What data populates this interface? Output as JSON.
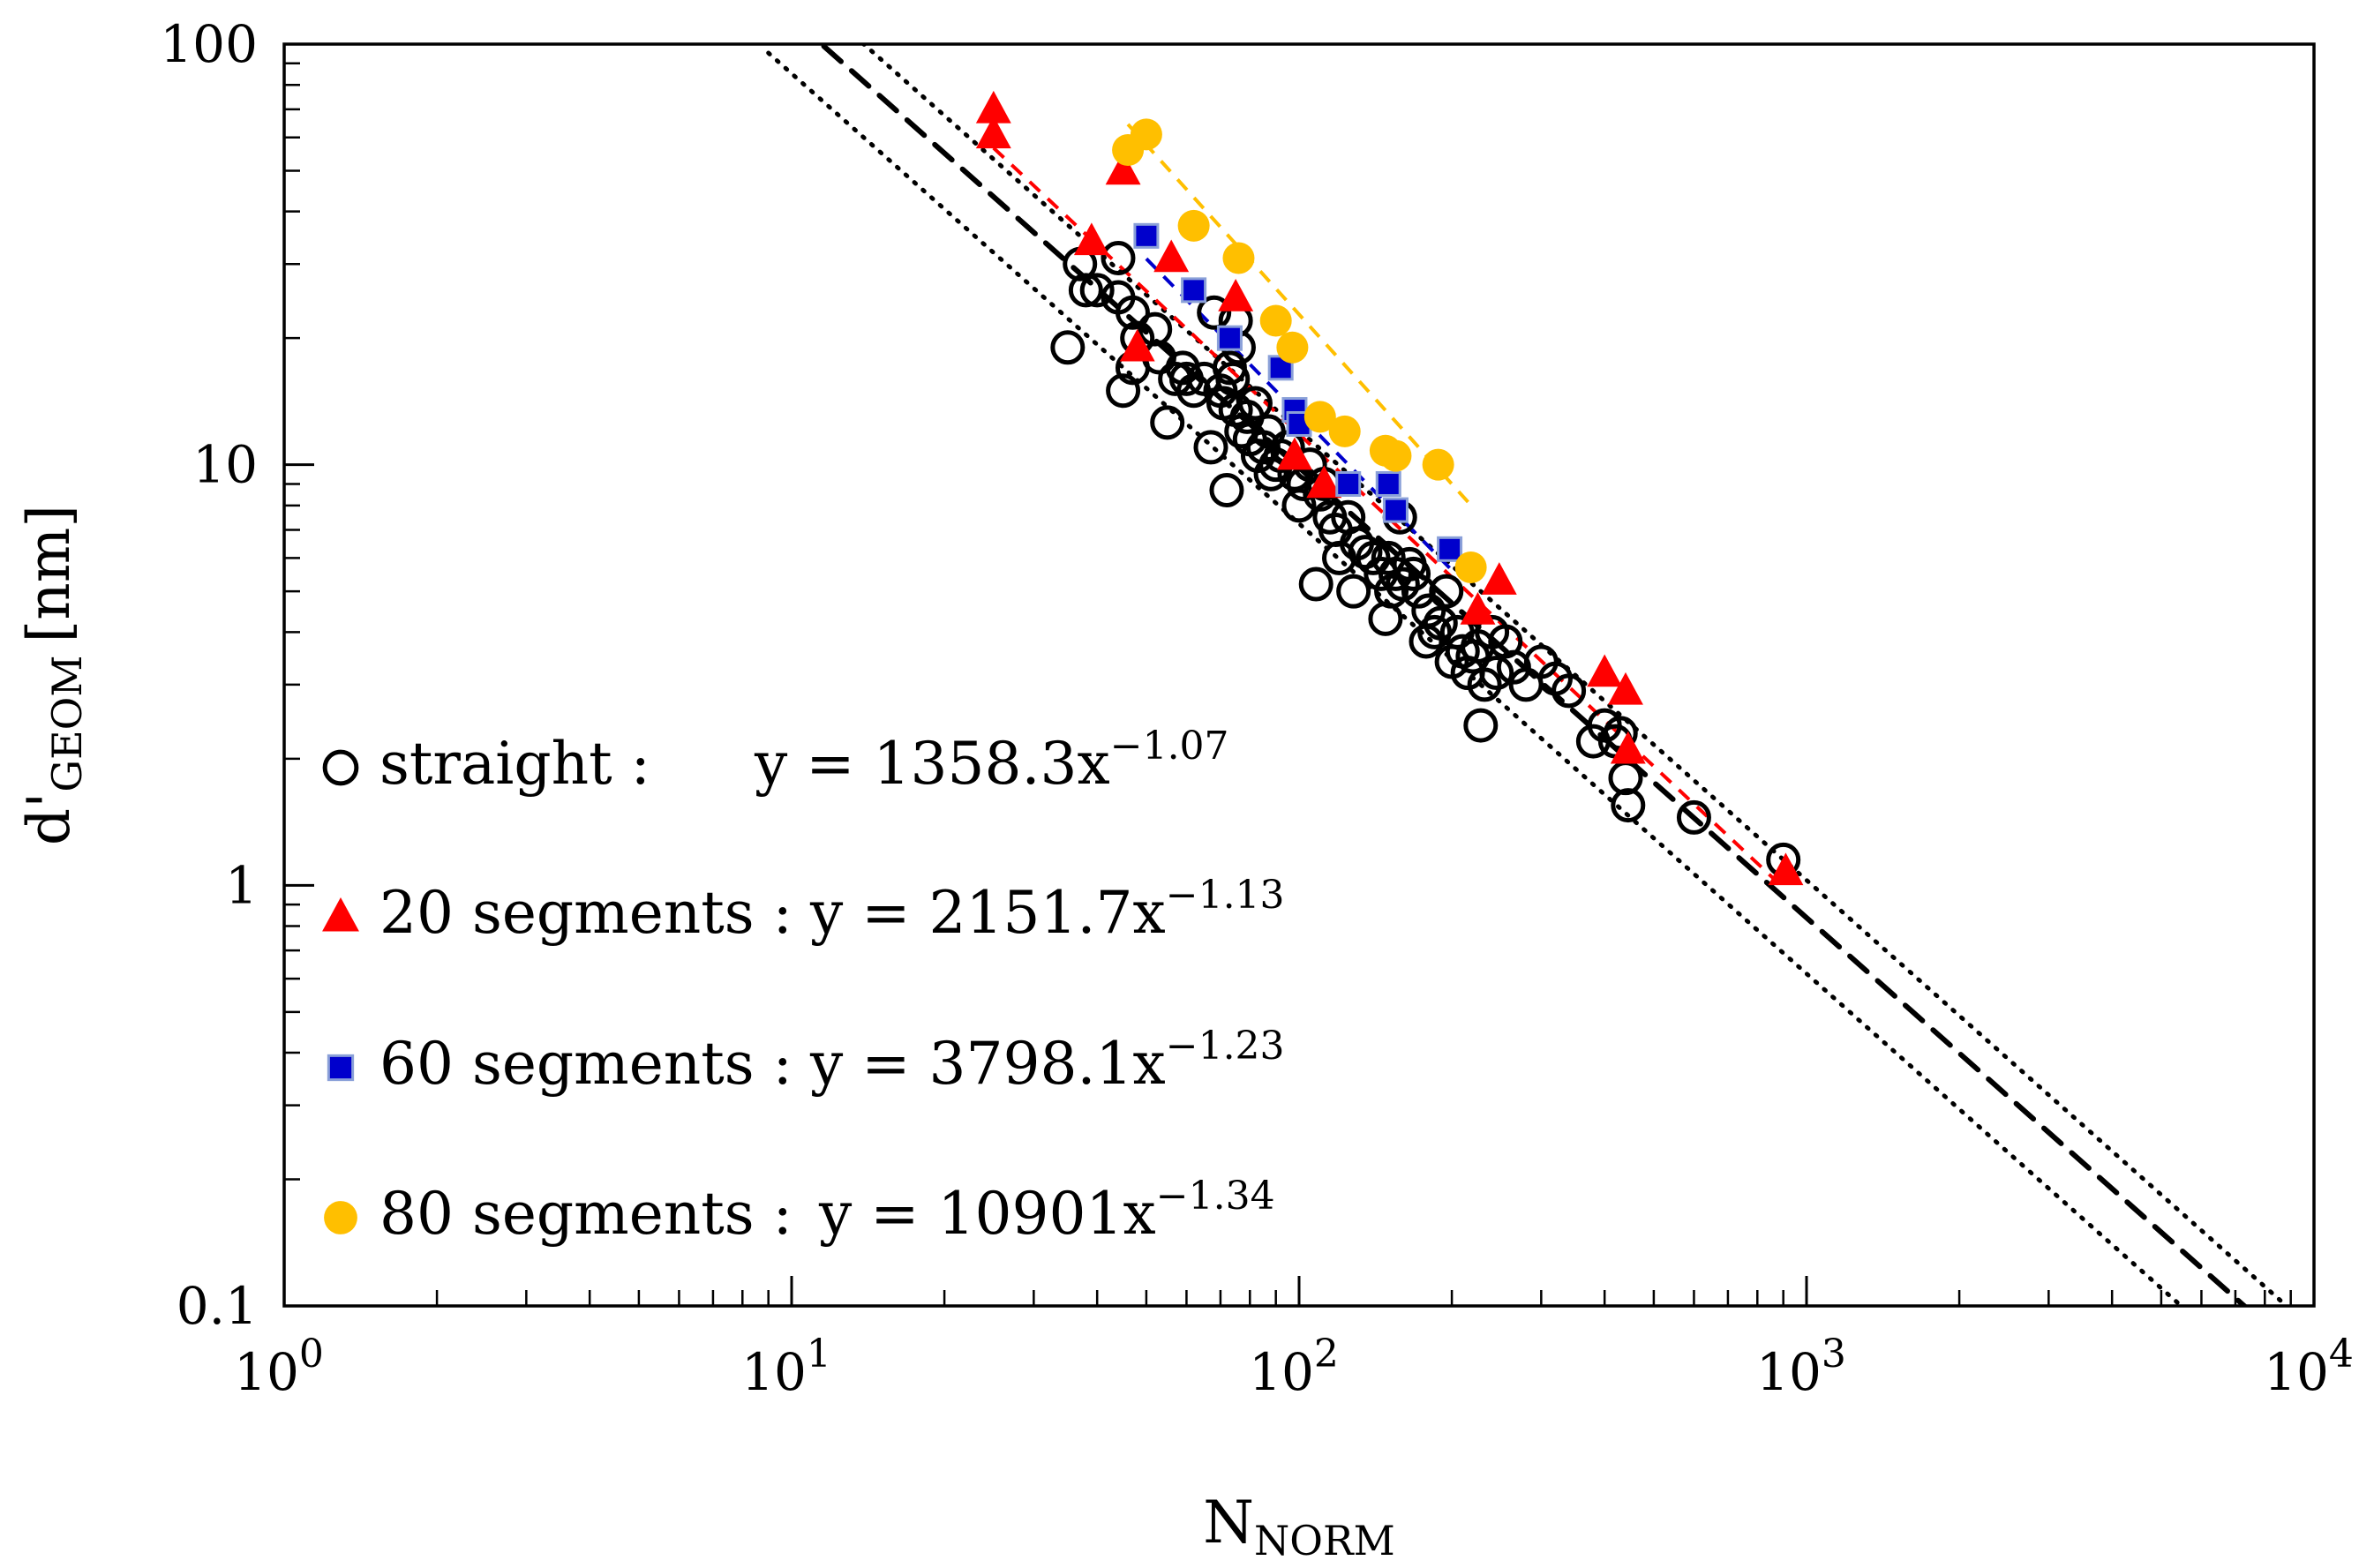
{
  "chart_data": {
    "type": "scatter",
    "xlabel": "N",
    "xlabel_sub": "NORM",
    "ylabel": "d'",
    "ylabel_sub": "GEOM",
    "ylabel_unit": "[nm]",
    "x_scale": "log",
    "y_scale": "log",
    "xlim": [
      1,
      10000
    ],
    "ylim": [
      0.1,
      100
    ],
    "x_ticks": [
      {
        "value": 1,
        "base": "10",
        "exp": "0"
      },
      {
        "value": 10,
        "base": "10",
        "exp": "1"
      },
      {
        "value": 100,
        "base": "10",
        "exp": "2"
      },
      {
        "value": 1000,
        "base": "10",
        "exp": "3"
      },
      {
        "value": 10000,
        "base": "10",
        "exp": "4"
      }
    ],
    "y_ticks": [
      {
        "value": 0.1,
        "label": "0.1"
      },
      {
        "value": 1,
        "label": "1"
      },
      {
        "value": 10,
        "label": "10"
      },
      {
        "value": 100,
        "label": "100"
      }
    ],
    "grid": false,
    "legend_position": "bottom-left",
    "series": [
      {
        "name": "straight",
        "marker": "open-circle",
        "color": "#000000",
        "fit": {
          "a": 1358.3,
          "b": -1.07,
          "text": "y = 1358.3x",
          "exp": "−1.07",
          "label": "straight :"
        },
        "points": [
          [
            35,
            19
          ],
          [
            37,
            30
          ],
          [
            38,
            26
          ],
          [
            40,
            26
          ],
          [
            44,
            31
          ],
          [
            44,
            25
          ],
          [
            45,
            15
          ],
          [
            47,
            23
          ],
          [
            47,
            17
          ],
          [
            48,
            20
          ],
          [
            52,
            21
          ],
          [
            53,
            18
          ],
          [
            55,
            12.6
          ],
          [
            57,
            16
          ],
          [
            59,
            17
          ],
          [
            60,
            16
          ],
          [
            62,
            15
          ],
          [
            65,
            16
          ],
          [
            67,
            11
          ],
          [
            68,
            23
          ],
          [
            70,
            15
          ],
          [
            71,
            14
          ],
          [
            72,
            8.7
          ],
          [
            73,
            17
          ],
          [
            74,
            16
          ],
          [
            75,
            13.5
          ],
          [
            75,
            22
          ],
          [
            76,
            19
          ],
          [
            77,
            12
          ],
          [
            79,
            13
          ],
          [
            80,
            11.5
          ],
          [
            82,
            14
          ],
          [
            83,
            10.5
          ],
          [
            85,
            11
          ],
          [
            87,
            12
          ],
          [
            88,
            9.5
          ],
          [
            90,
            10
          ],
          [
            92,
            10.5
          ],
          [
            95,
            11
          ],
          [
            98,
            9.5
          ],
          [
            100,
            8
          ],
          [
            102,
            9
          ],
          [
            105,
            10
          ],
          [
            108,
            5.2
          ],
          [
            110,
            8.5
          ],
          [
            112,
            9
          ],
          [
            115,
            7.5
          ],
          [
            118,
            7
          ],
          [
            120,
            6
          ],
          [
            125,
            7.5
          ],
          [
            128,
            5
          ],
          [
            130,
            6.5
          ],
          [
            135,
            6.2
          ],
          [
            140,
            6
          ],
          [
            145,
            5.5
          ],
          [
            148,
            4.3
          ],
          [
            150,
            6
          ],
          [
            152,
            5
          ],
          [
            155,
            5.5
          ],
          [
            158,
            7.5
          ],
          [
            160,
            5.2
          ],
          [
            165,
            5.8
          ],
          [
            168,
            5.5
          ],
          [
            172,
            5
          ],
          [
            178,
            3.8
          ],
          [
            180,
            4.5
          ],
          [
            185,
            4
          ],
          [
            190,
            4.2
          ],
          [
            195,
            5
          ],
          [
            200,
            3.4
          ],
          [
            205,
            4
          ],
          [
            210,
            3.6
          ],
          [
            215,
            3.2
          ],
          [
            220,
            3.5
          ],
          [
            225,
            3.7
          ],
          [
            228,
            2.4
          ],
          [
            232,
            3
          ],
          [
            240,
            4
          ],
          [
            245,
            3.2
          ],
          [
            255,
            3.8
          ],
          [
            265,
            3.3
          ],
          [
            280,
            3
          ],
          [
            300,
            3.4
          ],
          [
            320,
            3.1
          ],
          [
            340,
            2.9
          ],
          [
            380,
            2.2
          ],
          [
            400,
            2.4
          ],
          [
            420,
            2.2
          ],
          [
            430,
            2.3
          ],
          [
            440,
            1.8
          ],
          [
            445,
            1.55
          ],
          [
            600,
            1.45
          ],
          [
            900,
            1.15
          ]
        ]
      },
      {
        "name": "20 segments",
        "marker": "filled-triangle",
        "color": "#ff0000",
        "fit": {
          "a": 2151.7,
          "b": -1.13,
          "text": "y = 2151.7x",
          "exp": "−1.13",
          "label": "20 segments :"
        },
        "points": [
          [
            25,
            70
          ],
          [
            25,
            61
          ],
          [
            39,
            34
          ],
          [
            45,
            50
          ],
          [
            48,
            19
          ],
          [
            56,
            31
          ],
          [
            75,
            25
          ],
          [
            98,
            10.5
          ],
          [
            112,
            9
          ],
          [
            225,
            4.5
          ],
          [
            248,
            5.3
          ],
          [
            400,
            3.2
          ],
          [
            440,
            2.9
          ],
          [
            445,
            2.1
          ],
          [
            910,
            1.08
          ]
        ]
      },
      {
        "name": "60 segments",
        "marker": "filled-square",
        "color": "#0000cc",
        "fit": {
          "a": 3798.1,
          "b": -1.23,
          "text": "y = 3798.1x",
          "exp": "−1.23",
          "label": "60 segments :"
        },
        "points": [
          [
            50,
            35
          ],
          [
            62,
            26
          ],
          [
            73,
            20
          ],
          [
            92,
            17
          ],
          [
            98,
            13.5
          ],
          [
            100,
            12.5
          ],
          [
            125,
            9
          ],
          [
            150,
            9
          ],
          [
            155,
            7.8
          ],
          [
            198,
            6.3
          ]
        ]
      },
      {
        "name": "80 segments",
        "marker": "filled-circle",
        "color": "#ffbf00",
        "fit": {
          "a": 10901,
          "b": -1.34,
          "text": "y = 10901x",
          "exp": "−1.34",
          "label": "80 segments :"
        },
        "points": [
          [
            46,
            56
          ],
          [
            50,
            61
          ],
          [
            62,
            37
          ],
          [
            76,
            31
          ],
          [
            90,
            22
          ],
          [
            97,
            19
          ],
          [
            110,
            13
          ],
          [
            123,
            12
          ],
          [
            148,
            10.8
          ],
          [
            155,
            10.5
          ],
          [
            188,
            10
          ],
          [
            218,
            5.7
          ]
        ]
      }
    ],
    "reference_lines": [
      {
        "style": "dashed",
        "color": "#000000",
        "a": 1358.3,
        "b": -1.07
      },
      {
        "style": "dotted",
        "color": "#000000",
        "a": 1668,
        "b": -1.07
      },
      {
        "style": "dotted",
        "color": "#000000",
        "a": 1000,
        "b": -1.07
      }
    ]
  }
}
